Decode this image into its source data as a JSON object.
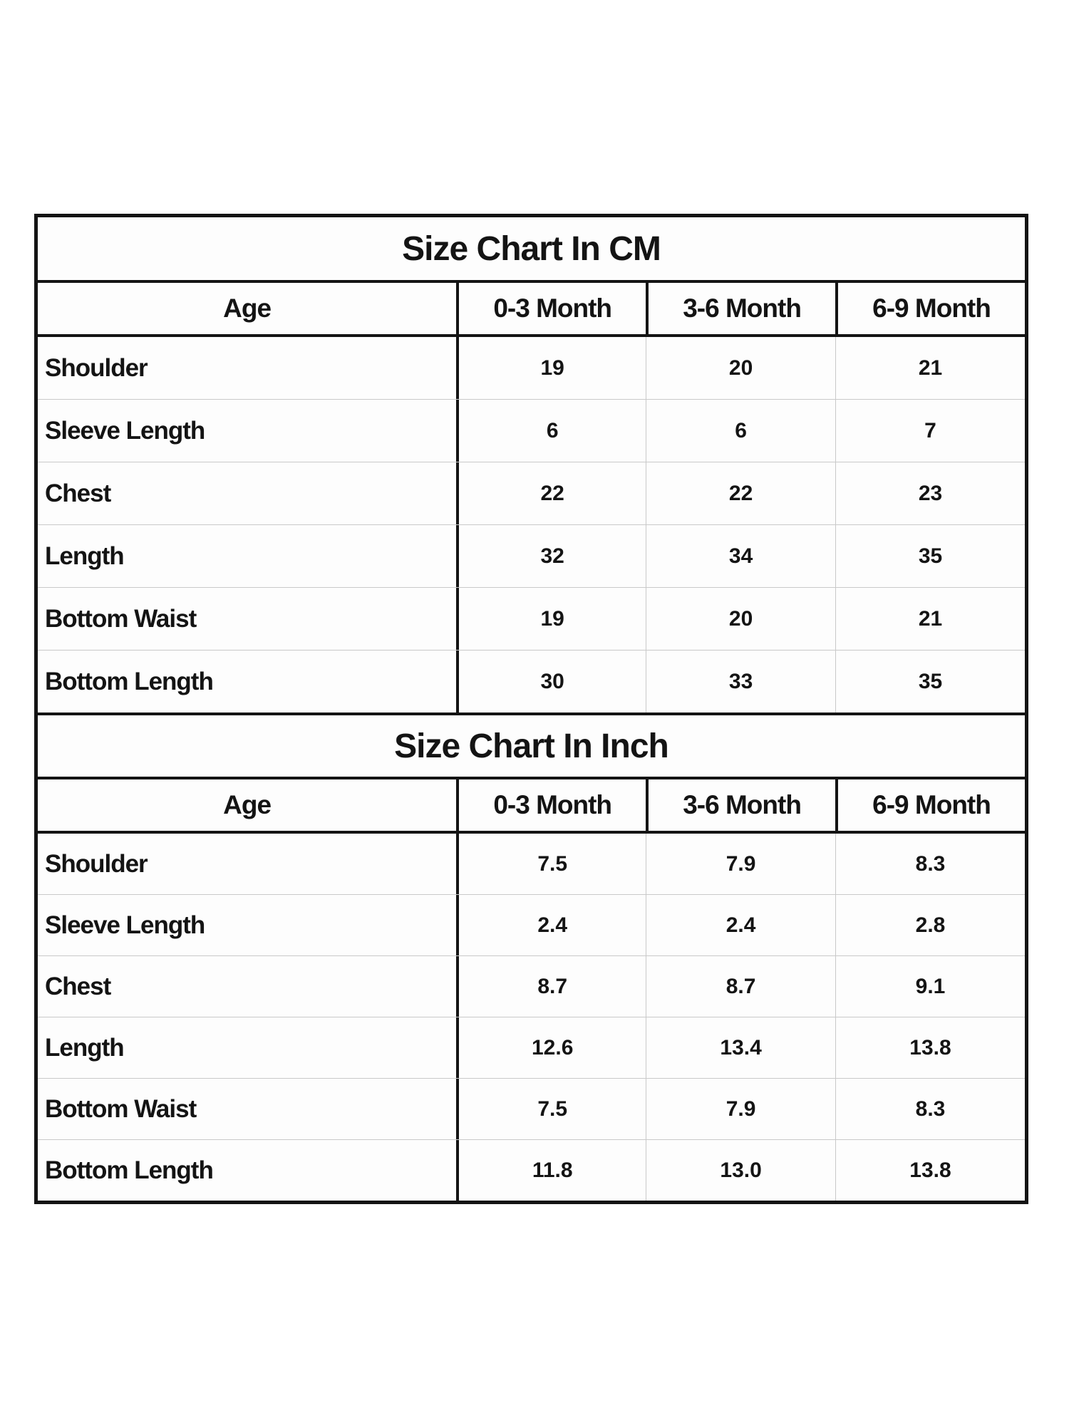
{
  "cm_table": {
    "title": "Size Chart In CM",
    "headers": [
      "Age",
      "0-3 Month",
      "3-6 Month",
      "6-9 Month"
    ],
    "rows": [
      {
        "label": "Shoulder",
        "values": [
          "19",
          "20",
          "21"
        ]
      },
      {
        "label": "Sleeve Length",
        "values": [
          "6",
          "6",
          "7"
        ]
      },
      {
        "label": "Chest",
        "values": [
          "22",
          "22",
          "23"
        ]
      },
      {
        "label": "Length",
        "values": [
          "32",
          "34",
          "35"
        ]
      },
      {
        "label": "Bottom Waist",
        "values": [
          "19",
          "20",
          "21"
        ]
      },
      {
        "label": "Bottom Length",
        "values": [
          "30",
          "33",
          "35"
        ]
      }
    ]
  },
  "inch_table": {
    "title": "Size Chart In Inch",
    "headers": [
      "Age",
      "0-3 Month",
      "3-6 Month",
      "6-9 Month"
    ],
    "rows": [
      {
        "label": "Shoulder",
        "values": [
          "7.5",
          "7.9",
          "8.3"
        ]
      },
      {
        "label": "Sleeve Length",
        "values": [
          "2.4",
          "2.4",
          "2.8"
        ]
      },
      {
        "label": "Chest",
        "values": [
          "8.7",
          "8.7",
          "9.1"
        ]
      },
      {
        "label": "Length",
        "values": [
          "12.6",
          "13.4",
          "13.8"
        ]
      },
      {
        "label": "Bottom Waist",
        "values": [
          "7.5",
          "7.9",
          "8.3"
        ]
      },
      {
        "label": "Bottom Length",
        "values": [
          "11.8",
          "13.0",
          "13.8"
        ]
      }
    ]
  },
  "colors": {
    "border_strong": "#141414",
    "border_light": "#c9c9c9",
    "text": "#141414",
    "background": "#ffffff"
  }
}
